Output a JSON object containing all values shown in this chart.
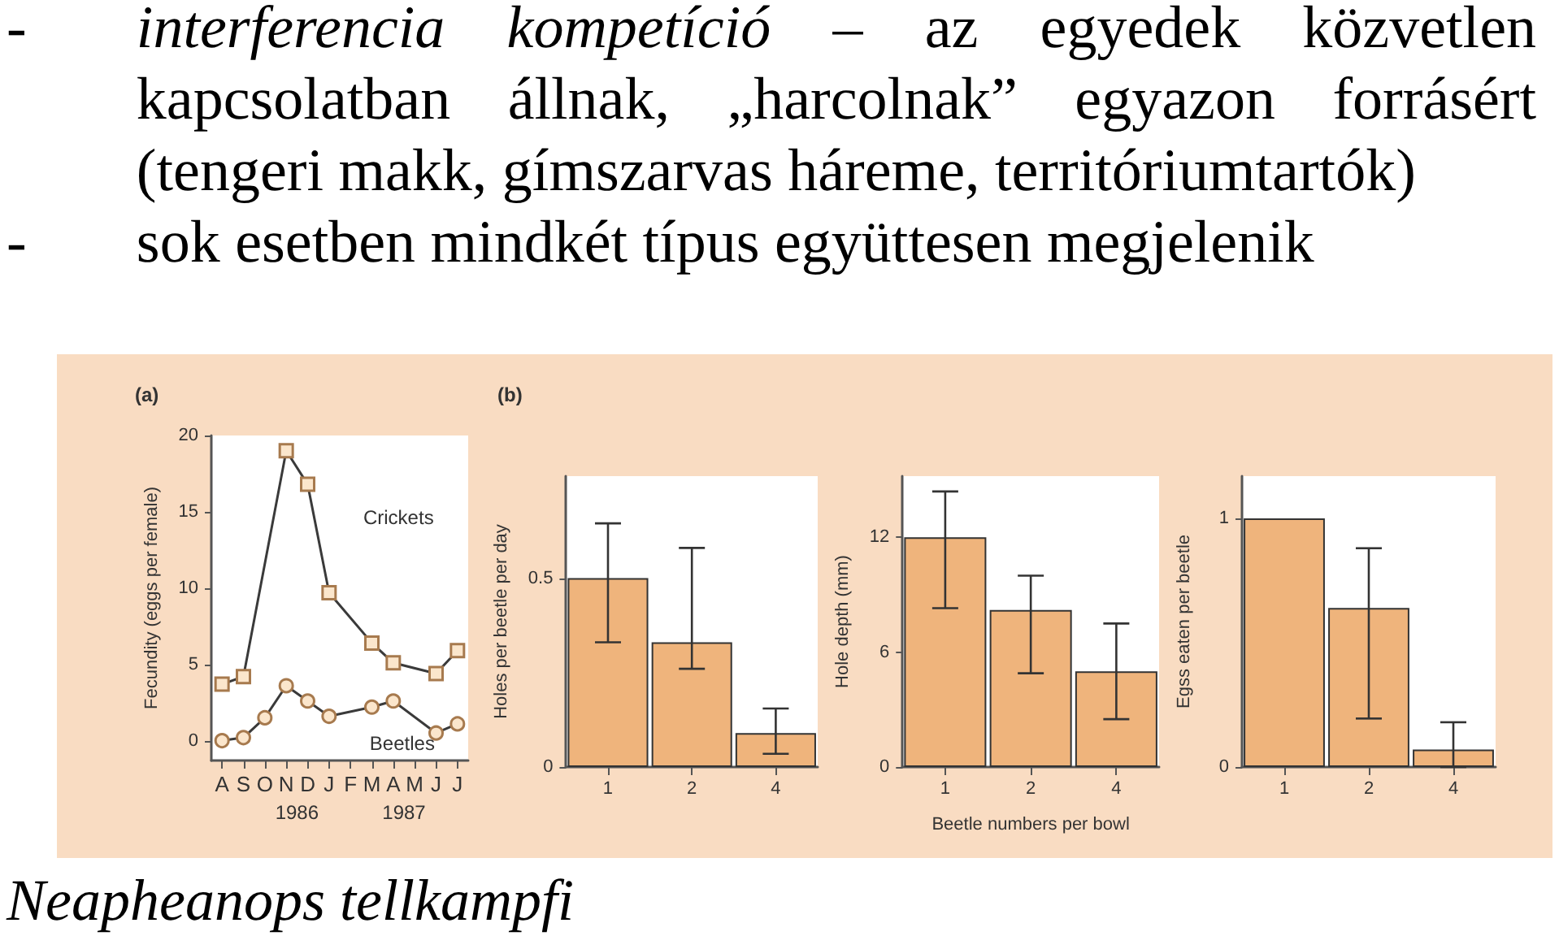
{
  "chart_data": [
    {
      "type": "line",
      "title": "(a)",
      "ylabel": "Fecundity (eggs per female)",
      "categories": [
        "A",
        "S",
        "O",
        "N",
        "D",
        "J",
        "F",
        "M",
        "A",
        "M",
        "J",
        "J"
      ],
      "ylim": [
        -1.3,
        20
      ],
      "yticks": [
        0,
        5,
        10,
        15,
        20
      ],
      "series": [
        {
          "name": "Crickets",
          "color": "#3a3a3a",
          "marker": "square",
          "values": [
            3.7,
            4.2,
            null,
            19,
            16.8,
            9.7,
            null,
            6.4,
            5.1,
            null,
            4.4,
            5.9
          ]
        },
        {
          "name": "Beetles",
          "color": "#3a3a3a",
          "marker": "circle",
          "values": [
            0,
            0.2,
            1.5,
            3.6,
            2.6,
            1.6,
            null,
            2.2,
            2.6,
            null,
            0.5,
            1.1
          ]
        }
      ],
      "annotations": [
        "-",
        "interferencia kompetíció",
        "– az egyedek közvetlen kapcsolatban állnak, „harcolnak” egyazon forrásért (tengeri makk, gímszarvas háreme, territóriumtartók)",
        "-",
        "sok esetben mindkét típus együttesen megjelenik",
        "Neapheanops tellkampfi",
        "1986",
        "1987"
      ]
    },
    {
      "type": "bar",
      "title": "(b)",
      "ylabel": "Holes per beetle per day",
      "categories": [
        "1",
        "2",
        "4"
      ],
      "values": [
        0.5,
        0.33,
        0.09
      ],
      "color": "#efb47c",
      "errors": [
        [
          0.33,
          0.645
        ],
        [
          0.26,
          0.58
        ],
        [
          0.035,
          0.155
        ]
      ],
      "ylim": [
        0,
        0.77
      ],
      "yticks": [
        0,
        0.5
      ]
    },
    {
      "type": "bar",
      "ylabel": "Hole depth (mm)",
      "xlabel": "Beetle numbers per bowl",
      "categories": [
        "1",
        "2",
        "4"
      ],
      "values": [
        12,
        8.2,
        5
      ],
      "color": "#efb47c",
      "errors": [
        [
          8.3,
          14.4
        ],
        [
          4.9,
          10
        ],
        [
          2.5,
          7.5
        ]
      ],
      "ylim": [
        0,
        15.2
      ],
      "yticks": [
        0,
        6,
        12
      ]
    },
    {
      "type": "bar",
      "ylabel": "Egss eaten per beetle",
      "categories": [
        "1",
        "2",
        "4"
      ],
      "values": [
        1,
        0.64,
        0.07
      ],
      "color": "#efb47c",
      "errors": [
        null,
        [
          0.195,
          0.88
        ],
        [
          0,
          0.18
        ]
      ],
      "ylim": [
        0,
        1.17
      ],
      "yticks": [
        0,
        1
      ]
    }
  ]
}
